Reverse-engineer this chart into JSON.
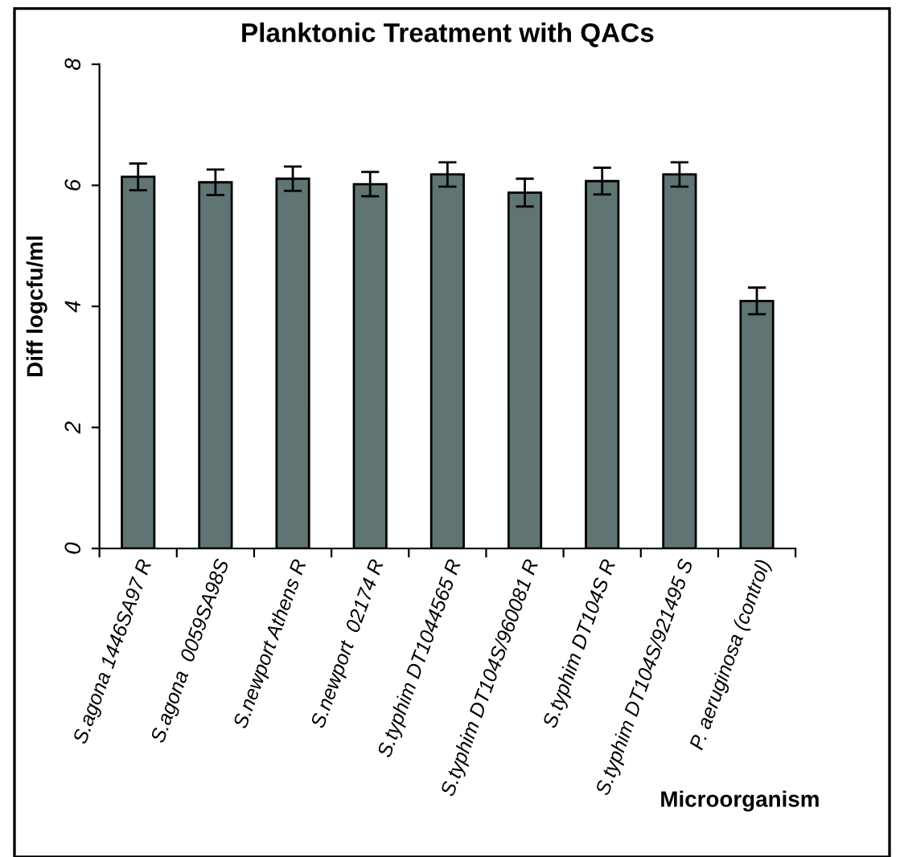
{
  "chart_data": {
    "type": "bar",
    "title": "Planktonic Treatment with QACs",
    "xlabel": "Microorganism",
    "ylabel": "Diff logcfu/ml",
    "categories": [
      "S.agona 1446SA97 R",
      "S.agona  0059SA98S",
      "S.newport Athens R",
      "S.newport  02174 R",
      "S.typhim DT1044565 R",
      "S.typhim DT104S/960081 R",
      "S.typhim DT104S R",
      "S.typhim DT104S/921495 S",
      "P. aeruginosa (control)"
    ],
    "values": [
      6.14,
      6.05,
      6.11,
      6.02,
      6.18,
      5.88,
      6.07,
      6.18,
      4.09
    ],
    "errors": [
      0.22,
      0.21,
      0.2,
      0.2,
      0.2,
      0.23,
      0.22,
      0.2,
      0.22
    ],
    "color": "#5f7473",
    "ylim": [
      0,
      8
    ],
    "yticks": [
      0,
      2,
      4,
      6,
      8
    ],
    "grid": false,
    "legend": false
  }
}
